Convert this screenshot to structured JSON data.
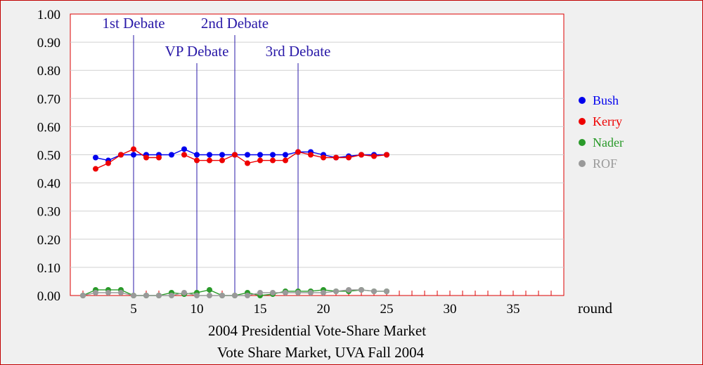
{
  "chart_data": {
    "type": "line",
    "title": "2004 Presidential Vote-Share Market",
    "subtitle": "Vote Share Market, UVA Fall 2004",
    "xlabel": "round",
    "ylabel": "",
    "xlim": [
      0,
      39
    ],
    "ylim": [
      0,
      1
    ],
    "x_ticks": [
      5,
      10,
      15,
      20,
      25,
      30,
      35
    ],
    "y_ticks": [
      "0.00",
      "0.10",
      "0.20",
      "0.30",
      "0.40",
      "0.50",
      "0.60",
      "0.70",
      "0.80",
      "0.90",
      "1.00"
    ],
    "grid": true,
    "legend_position": "right",
    "events": [
      {
        "label": "1st Debate",
        "x": 5,
        "row": 1
      },
      {
        "label": "VP Debate",
        "x": 10,
        "row": 2
      },
      {
        "label": "2nd Debate",
        "x": 13,
        "row": 1
      },
      {
        "label": "3rd Debate",
        "x": 18,
        "row": 2
      }
    ],
    "series": [
      {
        "name": "Bush",
        "color": "#0000ee",
        "x": [
          2,
          3,
          4,
          5,
          6,
          7,
          8,
          9,
          10,
          11,
          12,
          13,
          14,
          15,
          16,
          17,
          18,
          19,
          20,
          21,
          22,
          23,
          24,
          25
        ],
        "values": [
          0.49,
          0.48,
          0.5,
          0.5,
          0.5,
          0.5,
          0.5,
          0.52,
          0.5,
          0.5,
          0.5,
          0.5,
          0.5,
          0.5,
          0.5,
          0.5,
          0.51,
          0.51,
          0.5,
          0.49,
          0.495,
          0.5,
          0.5,
          0.5
        ]
      },
      {
        "name": "Kerry",
        "color": "#ee0000",
        "x": [
          2,
          3,
          4,
          5,
          6,
          7,
          8,
          9,
          10,
          11,
          12,
          13,
          14,
          15,
          16,
          17,
          18,
          19,
          20,
          21,
          22,
          23,
          24,
          25
        ],
        "values": [
          0.45,
          0.47,
          0.5,
          0.52,
          0.49,
          0.49,
          null,
          0.5,
          0.48,
          0.48,
          0.48,
          0.5,
          0.47,
          0.48,
          0.48,
          0.48,
          0.51,
          0.5,
          0.49,
          0.49,
          0.49,
          0.5,
          0.495,
          0.5
        ]
      },
      {
        "name": "Nader",
        "color": "#2a9a2a",
        "x": [
          1,
          2,
          3,
          4,
          5,
          6,
          7,
          8,
          9,
          10,
          11,
          12,
          13,
          14,
          15,
          16,
          17,
          18,
          19,
          20,
          21,
          22,
          23,
          24,
          25
        ],
        "values": [
          0.0,
          0.02,
          0.02,
          0.02,
          0.0,
          0.0,
          0.0,
          0.01,
          0.005,
          0.01,
          0.02,
          0.0,
          0.0,
          0.01,
          0.0,
          0.005,
          0.015,
          0.015,
          0.015,
          0.02,
          0.015,
          0.015,
          0.02,
          0.015,
          0.015
        ]
      },
      {
        "name": "ROF",
        "color": "#999999",
        "x": [
          1,
          2,
          3,
          4,
          5,
          6,
          7,
          8,
          9,
          10,
          11,
          12,
          13,
          14,
          15,
          16,
          17,
          18,
          19,
          20,
          21,
          22,
          23,
          24,
          25
        ],
        "values": [
          0.0,
          0.01,
          0.01,
          0.01,
          0.0,
          0.0,
          0.0,
          0.0,
          0.01,
          0.0,
          0.0,
          0.0,
          0.0,
          0.0,
          0.01,
          0.01,
          0.01,
          0.01,
          0.01,
          0.01,
          0.015,
          0.02,
          0.02,
          0.015,
          0.015
        ]
      }
    ]
  }
}
